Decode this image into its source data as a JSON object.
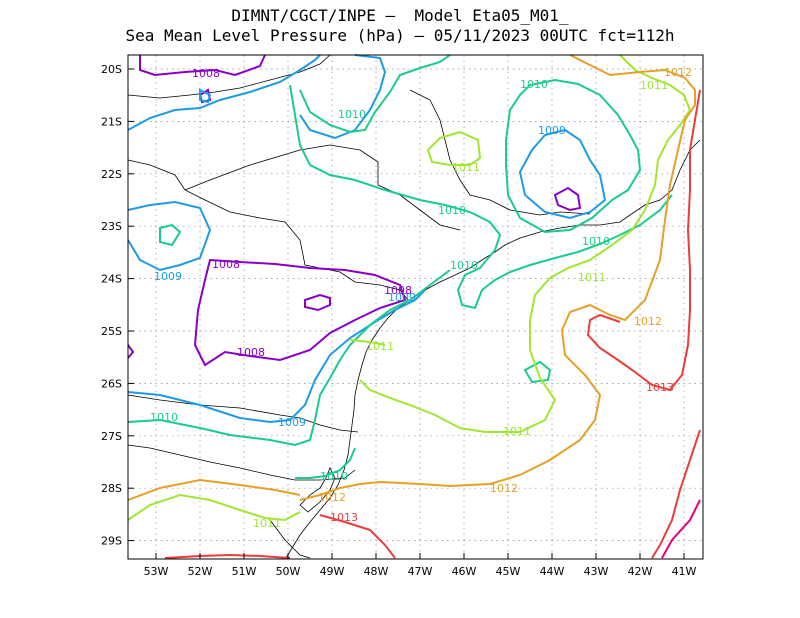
{
  "title": {
    "line1": "DIMNT/CGCT/INPE –  Model Eta05_M01_",
    "line2": "Sea Mean Level Pressure (hPa) – 05/11/2023 00UTC fct=112h"
  },
  "colors": {
    "c1008": "#8a00c8",
    "c1009": "#1e9be6",
    "c1010": "#19cc8c",
    "c1011": "#a0e632",
    "c1012": "#e6a028",
    "c1013": "#eb3c3c",
    "c1014": "#e6007a",
    "coast": "#000000",
    "grid": "#888888"
  },
  "axes": {
    "lon_ticks": [
      "53W",
      "52W",
      "51W",
      "50W",
      "49W",
      "48W",
      "47W",
      "46W",
      "45W",
      "44W",
      "43W",
      "42W",
      "41W"
    ],
    "lat_ticks": [
      "20S",
      "21S",
      "22S",
      "23S",
      "24S",
      "25S",
      "26S",
      "27S",
      "28S",
      "29S"
    ]
  },
  "contour_labels": [
    {
      "text": "1008",
      "level": "c1008"
    },
    {
      "text": "1008",
      "level": "c1008"
    },
    {
      "text": "1008",
      "level": "c1008"
    },
    {
      "text": "1008",
      "level": "c1008"
    },
    {
      "text": "1009",
      "level": "c1009"
    },
    {
      "text": "1009",
      "level": "c1009"
    },
    {
      "text": "1009",
      "level": "c1009"
    },
    {
      "text": "1009",
      "level": "c1009"
    },
    {
      "text": "1010",
      "level": "c1010"
    },
    {
      "text": "1010",
      "level": "c1010"
    },
    {
      "text": "1010",
      "level": "c1010"
    },
    {
      "text": "1010",
      "level": "c1010"
    },
    {
      "text": "1010",
      "level": "c1010"
    },
    {
      "text": "1010",
      "level": "c1010"
    },
    {
      "text": "1010",
      "level": "c1010"
    },
    {
      "text": "1011",
      "level": "c1011"
    },
    {
      "text": "1011",
      "level": "c1011"
    },
    {
      "text": "1011",
      "level": "c1011"
    },
    {
      "text": "1011",
      "level": "c1011"
    },
    {
      "text": "1011",
      "level": "c1011"
    },
    {
      "text": "1011",
      "level": "c1011"
    },
    {
      "text": "1012",
      "level": "c1012"
    },
    {
      "text": "1012",
      "level": "c1012"
    },
    {
      "text": "1012",
      "level": "c1012"
    },
    {
      "text": "1012",
      "level": "c1012"
    },
    {
      "text": "1013",
      "level": "c1013"
    },
    {
      "text": "1013",
      "level": "c1013"
    }
  ]
}
